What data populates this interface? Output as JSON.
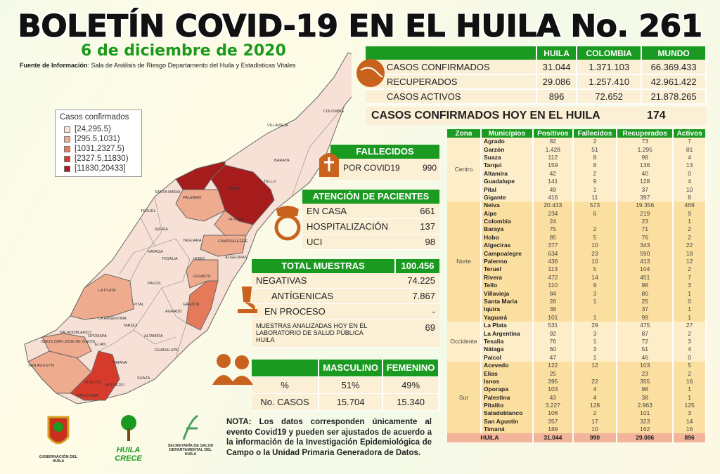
{
  "header": {
    "title": "BOLETÍN COVID-19 EN EL HUILA No. 261",
    "date": "6 de diciembre de 2020",
    "source_label": "Fuente de Información",
    "source_text": ": Sala de Análisis de Riesgo Departamento del Huila y Estadísticas Vitales"
  },
  "summary": {
    "columns": [
      "HUILA",
      "COLOMBIA",
      "MUNDO"
    ],
    "rows": [
      {
        "label": "CASOS CONFIRMADOS",
        "values": [
          "31.044",
          "1.371.103",
          "66.369.433"
        ]
      },
      {
        "label": "RECUPERADOS",
        "values": [
          "29.086",
          "1.257.410",
          "42.961.422"
        ]
      },
      {
        "label": "CASOS ACTIVOS",
        "values": [
          "896",
          "72.652",
          "21.878.265"
        ]
      }
    ],
    "today_label": "CASOS CONFIRMADOS  HOY EN EL HUILA",
    "today_value": "174"
  },
  "fallecidos": {
    "title": "FALLECIDOS",
    "label": "POR COVID19",
    "value": "990"
  },
  "atencion": {
    "title": "ATENCIÓN DE PACIENTES",
    "rows": [
      {
        "label": "EN CASA",
        "value": "661"
      },
      {
        "label": "HOSPITALIZACIÓN",
        "value": "137"
      },
      {
        "label": "UCI",
        "value": "98"
      }
    ]
  },
  "muestras": {
    "title": "TOTAL MUESTRAS",
    "total": "100.456",
    "rows": [
      {
        "label": "NEGATIVAS",
        "value": "74.225"
      },
      {
        "label": "ANTÍGENICAS",
        "value": "7.867"
      },
      {
        "label": "EN PROCESO",
        "value": "-"
      },
      {
        "label": "MUESTRAS ANALIZADAS HOY EN EL LABORATORIO DE SALUD PÚBLICA HUILA",
        "value": "69"
      }
    ]
  },
  "sexo": {
    "columns": [
      "MASCULINO",
      "FEMENINO"
    ],
    "rows": [
      {
        "label": "%",
        "values": [
          "51%",
          "49%"
        ]
      },
      {
        "label": "No. CASOS",
        "values": [
          "15.704",
          "15.340"
        ]
      }
    ]
  },
  "note": "NOTA: Los datos corresponden únicamente al evento Covid19 y pueden ser ajustados de acuerdo a la información de la Investigación Epidemiológica de Campo o la Unidad Primaria Generadora de Datos.",
  "legend": {
    "title": "Casos confirmados",
    "items": [
      {
        "label": "[24,295.5)",
        "color": "#f7e1d7"
      },
      {
        "label": "[295.5,1031)",
        "color": "#eeab8e"
      },
      {
        "label": "[1031,2327.5)",
        "color": "#e57a5a"
      },
      {
        "label": "[2327.5,11830)",
        "color": "#d63a2b"
      },
      {
        "label": "[11830,20433]",
        "color": "#a61c1c"
      }
    ]
  },
  "map_labels": [
    "COLOMBIA",
    "VILLAVIEJA",
    "BARAYA",
    "TELLO",
    "NEIVA",
    "SANTA MARIA",
    "PALERMO",
    "TERUEL",
    "RIVERA",
    "IQUIRA",
    "YAGUARA",
    "CAMPOALEGRE",
    "NATAGA",
    "TESALIA",
    "HOBO",
    "ALGECIRAS",
    "PAICOL",
    "GIGANTE",
    "LA PLATA",
    "PITAL",
    "LA ARGENTINA",
    "AGRADO",
    "TARQUI",
    "GARZON",
    "SALADOBLANCO",
    "OPORAPA",
    "ALTAMIRA",
    "ISNOS (SAN JOSE DE ISNOS)",
    "ELIAS",
    "GUADALUPE",
    "SAN AGUSTIN",
    "TIMANA",
    "SUAZA",
    "PITALITO",
    "PALESTINA",
    "ACEVEDO"
  ],
  "logos": [
    "GOBERNACIÓN DEL HUILA",
    "HUILA CRECE",
    "SECRETARÍA DE SALUD DEPARTAMENTAL DEL HUILA"
  ],
  "table": {
    "columns": [
      "Zona",
      "Municipios",
      "Positivos",
      "Fallecidos",
      "Recuperados",
      "Activos"
    ],
    "zones": [
      {
        "name": "Centro",
        "rows": [
          [
            "Agrado",
            "82",
            "2",
            "73",
            "7"
          ],
          [
            "Garzón",
            "1.428",
            "51",
            "1.295",
            "81"
          ],
          [
            "Suaza",
            "112",
            "8",
            "98",
            "4"
          ],
          [
            "Tarqui",
            "159",
            "8",
            "136",
            "13"
          ],
          [
            "Altamira",
            "42",
            "2",
            "40",
            "0"
          ],
          [
            "Guadalupe",
            "141",
            "9",
            "128",
            "4"
          ],
          [
            "Pital",
            "49",
            "1",
            "37",
            "10"
          ],
          [
            "Gigante",
            "416",
            "11",
            "397",
            "8"
          ]
        ]
      },
      {
        "name": "Norte",
        "rows": [
          [
            "Neiva",
            "20.433",
            "573",
            "19.356",
            "469"
          ],
          [
            "Aipe",
            "234",
            "6",
            "219",
            "9"
          ],
          [
            "Colombia",
            "24",
            "",
            "23",
            "1"
          ],
          [
            "Baraya",
            "75",
            "2",
            "71",
            "2"
          ],
          [
            "Hobo",
            "85",
            "5",
            "76",
            "2"
          ],
          [
            "Algeciras",
            "377",
            "10",
            "343",
            "22"
          ],
          [
            "Campoalegre",
            "634",
            "23",
            "590",
            "18"
          ],
          [
            "Palermo",
            "436",
            "10",
            "413",
            "12"
          ],
          [
            "Teruel",
            "113",
            "5",
            "104",
            "2"
          ],
          [
            "Rivera",
            "472",
            "14",
            "451",
            "7"
          ],
          [
            "Tello",
            "110",
            "9",
            "98",
            "3"
          ],
          [
            "Villavieja",
            "84",
            "3",
            "80",
            "1"
          ],
          [
            "Santa Maria",
            "26",
            "1",
            "25",
            "0"
          ],
          [
            "Iquira",
            "38",
            "",
            "37",
            "1"
          ],
          [
            "Yaguará",
            "101",
            "1",
            "99",
            "1"
          ]
        ]
      },
      {
        "name": "Occidente",
        "rows": [
          [
            "La Plata",
            "531",
            "29",
            "475",
            "27"
          ],
          [
            "La Argentina",
            "92",
            "3",
            "87",
            "2"
          ],
          [
            "Tesalia",
            "76",
            "1",
            "72",
            "3"
          ],
          [
            "Nátaga",
            "60",
            "3",
            "51",
            "4"
          ],
          [
            "Paicol",
            "47",
            "1",
            "46",
            "0"
          ]
        ]
      },
      {
        "name": "Sur",
        "rows": [
          [
            "Acevedo",
            "122",
            "12",
            "103",
            "5"
          ],
          [
            "Elias",
            "25",
            "",
            "23",
            "2"
          ],
          [
            "Isnos",
            "395",
            "22",
            "355",
            "16"
          ],
          [
            "Oporapa",
            "103",
            "4",
            "98",
            "1"
          ],
          [
            "Palestina",
            "43",
            "4",
            "38",
            "1"
          ],
          [
            "Pitalito",
            "3.227",
            "128",
            "2.963",
            "125"
          ],
          [
            "Saladoblanco",
            "106",
            "2",
            "101",
            "3"
          ],
          [
            "San Agustin",
            "357",
            "17",
            "323",
            "14"
          ],
          [
            "Timaná",
            "189",
            "10",
            "162",
            "16"
          ]
        ]
      }
    ],
    "total": [
      "HUILA",
      "31.044",
      "990",
      "29.086",
      "896"
    ]
  }
}
